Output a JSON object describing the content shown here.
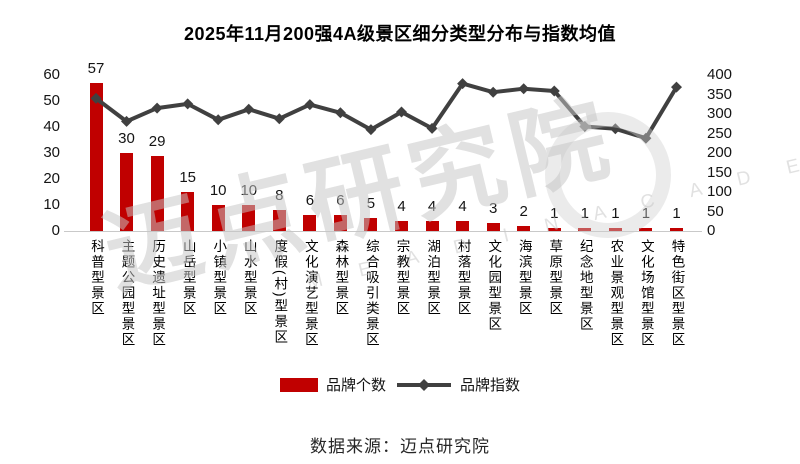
{
  "title": "2025年11月200强4A级景区细分类型分布与指数均值",
  "source": "数据来源：迈点研究院",
  "watermark": {
    "text": "迈点研究院",
    "subtext": "M E A D I N  A C A D E M Y"
  },
  "legend": {
    "bars_label": "品牌个数",
    "line_label": "品牌指数"
  },
  "colors": {
    "bar": "#c00000",
    "line": "#404040",
    "axis_line": "#c9c9c9",
    "text": "#141414",
    "watermark": "#c6c6c6"
  },
  "chart_data": {
    "type": "bar",
    "subtype": "bar+line combo",
    "title": "2025年11月200强4A级景区细分类型分布与指数均值",
    "categories": [
      "科普型景区",
      "主题公园型景区",
      "历史遗址型景区",
      "山岳型景区",
      "小镇型景区",
      "山水型景区",
      "度假(村)型景区",
      "文化演艺型景区",
      "森林型景区",
      "综合吸引类景区",
      "宗教型景区",
      "湖泊型景区",
      "村落型景区",
      "文化园型景区",
      "海滨型景区",
      "草原型景区",
      "纪念地型景区",
      "农业景观型景区",
      "文化场馆型景区",
      "特色街区型景区"
    ],
    "series": [
      {
        "name": "品牌个数",
        "type": "bar",
        "axis": "left",
        "values": [
          57,
          30,
          29,
          15,
          10,
          10,
          8,
          6,
          6,
          5,
          4,
          4,
          4,
          3,
          2,
          1,
          1,
          1,
          1,
          1
        ],
        "labels_shown": true
      },
      {
        "name": "品牌指数",
        "type": "line",
        "axis": "right",
        "values": [
          340,
          281,
          315,
          326,
          285,
          312,
          288,
          324,
          303,
          260,
          305,
          263,
          378,
          356,
          365,
          359,
          268,
          262,
          238,
          369
        ],
        "labels_shown": false,
        "marker": "diamond"
      }
    ],
    "left_axis": {
      "min": 0,
      "max": 60,
      "step": 10,
      "ticks": [
        0,
        10,
        20,
        30,
        40,
        50,
        60
      ]
    },
    "right_axis": {
      "min": 0,
      "max": 400,
      "step": 50,
      "ticks": [
        0,
        50,
        100,
        150,
        200,
        250,
        300,
        350,
        400
      ]
    },
    "grid": false,
    "legend_position": "bottom",
    "xlabel": "",
    "ylabel_left": "",
    "ylabel_right": ""
  }
}
